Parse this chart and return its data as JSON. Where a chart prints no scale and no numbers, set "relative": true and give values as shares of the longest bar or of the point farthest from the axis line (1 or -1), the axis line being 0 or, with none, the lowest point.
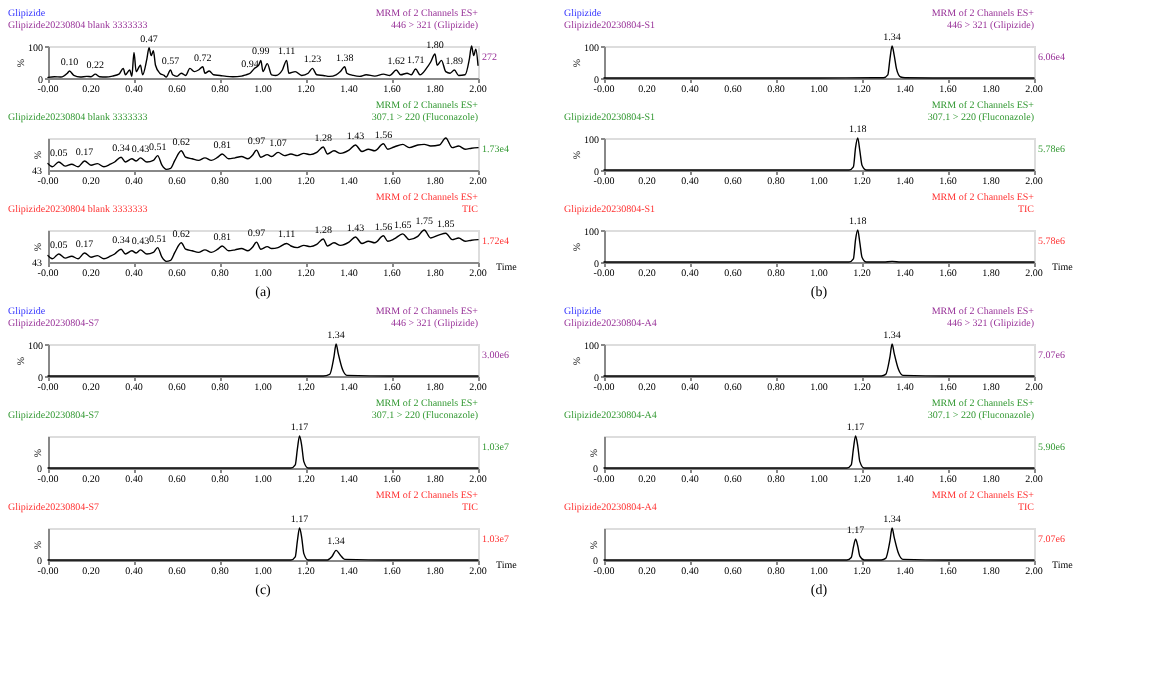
{
  "chart_data": [
    {
      "type": "line",
      "title": "Glipizide20230804 blank 3333333",
      "subtitle": "MRM of 2 Channels ES+\n446 > 321 (Glipizide)\n272",
      "ylabel": "%",
      "color": "#000000",
      "annotations": [
        "Glipizide",
        {
          "text": "0.10",
          "x": 0.1,
          "y": 22
        },
        {
          "text": "0.22",
          "x": 0.22,
          "y": 12
        },
        {
          "text": "0.47",
          "x": 0.47,
          "y": 95
        },
        {
          "text": "0.57",
          "x": 0.57,
          "y": 25
        },
        {
          "text": "0.72",
          "x": 0.72,
          "y": 35
        },
        {
          "text": "0.94",
          "x": 0.94,
          "y": 15
        },
        {
          "text": "0.99",
          "x": 0.99,
          "y": 55
        },
        {
          "text": "1.11",
          "x": 1.11,
          "y": 55
        },
        {
          "text": "1.23",
          "x": 1.23,
          "y": 30
        },
        {
          "text": "1.38",
          "x": 1.38,
          "y": 35
        },
        {
          "text": "1.62",
          "x": 1.62,
          "y": 25
        },
        {
          "text": "1.71",
          "x": 1.71,
          "y": 28
        },
        {
          "text": "1.80",
          "x": 1.8,
          "y": 75
        },
        {
          "text": "1.89",
          "x": 1.89,
          "y": 25
        }
      ],
      "x": [
        0.0,
        0.03,
        0.06,
        0.09,
        0.1,
        0.12,
        0.15,
        0.18,
        0.2,
        0.22,
        0.24,
        0.27,
        0.3,
        0.33,
        0.35,
        0.36,
        0.38,
        0.39,
        0.4,
        0.41,
        0.43,
        0.44,
        0.46,
        0.47,
        0.48,
        0.49,
        0.5,
        0.52,
        0.54,
        0.55,
        0.57,
        0.58,
        0.6,
        0.62,
        0.64,
        0.66,
        0.68,
        0.7,
        0.72,
        0.73,
        0.75,
        0.77,
        0.8,
        0.83,
        0.86,
        0.9,
        0.92,
        0.94,
        0.96,
        0.98,
        0.99,
        1.0,
        1.02,
        1.04,
        1.06,
        1.09,
        1.11,
        1.12,
        1.15,
        1.18,
        1.21,
        1.23,
        1.25,
        1.28,
        1.31,
        1.34,
        1.36,
        1.38,
        1.39,
        1.42,
        1.45,
        1.48,
        1.52,
        1.56,
        1.59,
        1.62,
        1.64,
        1.67,
        1.69,
        1.71,
        1.73,
        1.76,
        1.78,
        1.8,
        1.81,
        1.83,
        1.85,
        1.87,
        1.89,
        1.91,
        1.94,
        1.96,
        1.97,
        1.98,
        1.99,
        2.0
      ],
      "values": [
        2,
        4,
        3,
        15,
        22,
        8,
        3,
        5,
        4,
        12,
        4,
        3,
        6,
        12,
        30,
        10,
        25,
        5,
        80,
        20,
        40,
        10,
        60,
        95,
        70,
        85,
        40,
        15,
        8,
        3,
        25,
        10,
        5,
        15,
        8,
        30,
        20,
        25,
        35,
        15,
        22,
        10,
        8,
        5,
        4,
        6,
        10,
        15,
        30,
        40,
        55,
        20,
        45,
        10,
        8,
        25,
        55,
        15,
        20,
        8,
        15,
        30,
        10,
        8,
        5,
        10,
        20,
        35,
        15,
        8,
        5,
        10,
        6,
        12,
        8,
        25,
        10,
        15,
        10,
        28,
        10,
        30,
        50,
        75,
        40,
        55,
        20,
        15,
        25,
        8,
        10,
        60,
        100,
        70,
        90,
        40
      ],
      "xlim": [
        0,
        2
      ],
      "xticks": [
        {
          "value": 0,
          "label": "-0.00"
        },
        {
          "value": 0.2,
          "label": "0.20"
        },
        {
          "value": 0.4,
          "label": "0.40"
        },
        {
          "value": 0.6,
          "label": "0.60"
        },
        {
          "value": 0.8,
          "label": "0.80"
        },
        {
          "value": 1,
          "label": "1.00"
        },
        {
          "value": 1.2,
          "label": "1.20"
        },
        {
          "value": 1.4,
          "label": "1.40"
        },
        {
          "value": 1.6,
          "label": "1.60"
        },
        {
          "value": 1.8,
          "label": "1.80"
        },
        {
          "value": 2,
          "label": "2.00"
        }
      ],
      "ylim": [
        0,
        100
      ],
      "yticks": [
        0,
        100
      ]
    },
    {
      "type": "line",
      "relative": true,
      "title": "Glipizide20230804 blank 3333333",
      "subtitle": "MRM of 2 Channels ES+\n307.1 > 220 (Fluconazole)\n1.73e4",
      "ylabel": "%",
      "color": "#000000",
      "annotations": [
        "43",
        {
          "text": "0.05",
          "x": 0.05,
          "y": 0.25
        },
        {
          "text": "0.17",
          "x": 0.17,
          "y": 0.28
        },
        {
          "text": "0.34",
          "x": 0.34,
          "y": 0.4
        },
        {
          "text": "0.43",
          "x": 0.43,
          "y": 0.38
        },
        {
          "text": "0.51",
          "x": 0.51,
          "y": 0.45
        },
        {
          "text": "0.62",
          "x": 0.62,
          "y": 0.6
        },
        {
          "text": "0.81",
          "x": 0.81,
          "y": 0.5
        },
        {
          "text": "0.97",
          "x": 0.97,
          "y": 0.62
        },
        {
          "text": "1.07",
          "x": 1.07,
          "y": 0.55
        },
        {
          "text": "1.28",
          "x": 1.28,
          "y": 0.72
        },
        {
          "text": "1.43",
          "x": 1.43,
          "y": 0.78
        },
        {
          "text": "1.56",
          "x": 1.56,
          "y": 0.82
        }
      ],
      "x": [
        0.0,
        0.02,
        0.05,
        0.08,
        0.11,
        0.14,
        0.17,
        0.2,
        0.23,
        0.26,
        0.29,
        0.31,
        0.34,
        0.36,
        0.39,
        0.41,
        0.43,
        0.46,
        0.49,
        0.51,
        0.53,
        0.55,
        0.57,
        0.59,
        0.62,
        0.64,
        0.67,
        0.7,
        0.73,
        0.76,
        0.79,
        0.81,
        0.84,
        0.87,
        0.9,
        0.93,
        0.95,
        0.97,
        0.99,
        1.02,
        1.04,
        1.07,
        1.1,
        1.13,
        1.16,
        1.19,
        1.22,
        1.25,
        1.28,
        1.3,
        1.33,
        1.36,
        1.4,
        1.43,
        1.46,
        1.49,
        1.52,
        1.56,
        1.58,
        1.61,
        1.65,
        1.68,
        1.72,
        1.75,
        1.78,
        1.82,
        1.85,
        1.88,
        1.91,
        1.94,
        1.97,
        2.0
      ],
      "values": [
        0.2,
        0.1,
        0.25,
        0.12,
        0.18,
        0.1,
        0.28,
        0.15,
        0.2,
        0.1,
        0.18,
        0.25,
        0.4,
        0.25,
        0.35,
        0.28,
        0.38,
        0.25,
        0.3,
        0.45,
        0.15,
        0.02,
        0.05,
        0.3,
        0.6,
        0.4,
        0.35,
        0.3,
        0.38,
        0.3,
        0.4,
        0.5,
        0.35,
        0.38,
        0.42,
        0.35,
        0.45,
        0.62,
        0.4,
        0.48,
        0.42,
        0.55,
        0.45,
        0.5,
        0.45,
        0.52,
        0.48,
        0.55,
        0.72,
        0.5,
        0.6,
        0.52,
        0.62,
        0.78,
        0.58,
        0.65,
        0.6,
        0.82,
        0.65,
        0.72,
        0.8,
        0.7,
        0.78,
        0.8,
        0.75,
        0.78,
        1.0,
        0.7,
        0.75,
        0.65,
        0.68,
        0.7
      ],
      "xlim": [
        0,
        2
      ],
      "xticks": [
        {
          "value": 0,
          "label": "-0.00"
        },
        {
          "value": 0.2,
          "label": "0.20"
        },
        {
          "value": 0.4,
          "label": "0.40"
        },
        {
          "value": 0.6,
          "label": "0.60"
        },
        {
          "value": 0.8,
          "label": "0.80"
        },
        {
          "value": 1,
          "label": "1.00"
        },
        {
          "value": 1.2,
          "label": "1.20"
        },
        {
          "value": 1.4,
          "label": "1.40"
        },
        {
          "value": 1.6,
          "label": "1.60"
        },
        {
          "value": 1.8,
          "label": "1.80"
        },
        {
          "value": 2,
          "label": "2.00"
        }
      ]
    },
    {
      "type": "line",
      "relative": true,
      "title": "Glipizide20230804 blank 3333333",
      "subtitle": "MRM of 2 Channels ES+\nTIC\n1.72e4",
      "xlabel": "Time",
      "ylabel": "%",
      "color": "#000000",
      "annotations": [
        "43",
        "(a)",
        {
          "text": "0.05",
          "x": 0.05,
          "y": 0.25
        },
        {
          "text": "0.17",
          "x": 0.17,
          "y": 0.28
        },
        {
          "text": "0.34",
          "x": 0.34,
          "y": 0.4
        },
        {
          "text": "0.43",
          "x": 0.43,
          "y": 0.38
        },
        {
          "text": "0.51",
          "x": 0.51,
          "y": 0.45
        },
        {
          "text": "0.62",
          "x": 0.62,
          "y": 0.6
        },
        {
          "text": "0.81",
          "x": 0.81,
          "y": 0.5
        },
        {
          "text": "0.97",
          "x": 0.97,
          "y": 0.62
        },
        {
          "text": "1.11",
          "x": 1.11,
          "y": 0.58
        },
        {
          "text": "1.28",
          "x": 1.28,
          "y": 0.72
        },
        {
          "text": "1.43",
          "x": 1.43,
          "y": 0.78
        },
        {
          "text": "1.56",
          "x": 1.56,
          "y": 0.82
        },
        {
          "text": "1.65",
          "x": 1.65,
          "y": 0.88
        },
        {
          "text": "1.75",
          "x": 1.75,
          "y": 1.0
        },
        {
          "text": "1.85",
          "x": 1.85,
          "y": 0.9
        }
      ],
      "x": [
        0.0,
        0.02,
        0.05,
        0.08,
        0.11,
        0.14,
        0.17,
        0.2,
        0.23,
        0.26,
        0.29,
        0.31,
        0.34,
        0.36,
        0.39,
        0.41,
        0.43,
        0.46,
        0.49,
        0.51,
        0.53,
        0.55,
        0.57,
        0.59,
        0.62,
        0.64,
        0.67,
        0.7,
        0.73,
        0.76,
        0.79,
        0.81,
        0.84,
        0.87,
        0.9,
        0.93,
        0.95,
        0.97,
        0.99,
        1.02,
        1.04,
        1.07,
        1.11,
        1.13,
        1.16,
        1.19,
        1.22,
        1.25,
        1.28,
        1.3,
        1.33,
        1.36,
        1.4,
        1.43,
        1.46,
        1.49,
        1.52,
        1.56,
        1.58,
        1.61,
        1.65,
        1.68,
        1.72,
        1.75,
        1.78,
        1.82,
        1.85,
        1.88,
        1.91,
        1.94,
        1.97,
        2.0
      ],
      "values": [
        0.2,
        0.1,
        0.25,
        0.12,
        0.18,
        0.1,
        0.28,
        0.15,
        0.2,
        0.1,
        0.18,
        0.25,
        0.4,
        0.25,
        0.35,
        0.28,
        0.38,
        0.25,
        0.3,
        0.45,
        0.15,
        0.02,
        0.05,
        0.3,
        0.6,
        0.4,
        0.35,
        0.3,
        0.38,
        0.3,
        0.4,
        0.5,
        0.35,
        0.38,
        0.42,
        0.35,
        0.45,
        0.62,
        0.4,
        0.48,
        0.42,
        0.45,
        0.58,
        0.5,
        0.45,
        0.52,
        0.48,
        0.55,
        0.72,
        0.5,
        0.6,
        0.52,
        0.62,
        0.78,
        0.58,
        0.65,
        0.6,
        0.82,
        0.65,
        0.72,
        0.88,
        0.7,
        0.8,
        1.0,
        0.75,
        0.85,
        0.9,
        0.7,
        0.75,
        0.65,
        0.68,
        0.7
      ],
      "xlim": [
        0,
        2
      ],
      "xticks": [
        {
          "value": 0,
          "label": "-0.00"
        },
        {
          "value": 0.2,
          "label": "0.20"
        },
        {
          "value": 0.4,
          "label": "0.40"
        },
        {
          "value": 0.6,
          "label": "0.60"
        },
        {
          "value": 0.8,
          "label": "0.80"
        },
        {
          "value": 1,
          "label": "1.00"
        },
        {
          "value": 1.2,
          "label": "1.20"
        },
        {
          "value": 1.4,
          "label": "1.40"
        },
        {
          "value": 1.6,
          "label": "1.60"
        },
        {
          "value": 1.8,
          "label": "1.80"
        },
        {
          "value": 2,
          "label": "2.00"
        }
      ]
    },
    {
      "type": "line",
      "title": "Glipizide20230804-S1",
      "subtitle": "MRM of 2 Channels ES+\n446 > 321 (Glipizide)\n6.06e4",
      "ylabel": "%",
      "color": "#000000",
      "annotations": [
        "Glipizide",
        {
          "text": "1.34",
          "x": 1.34,
          "y": 100
        }
      ],
      "x": [
        0,
        0.5,
        1.0,
        1.25,
        1.3,
        1.32,
        1.33,
        1.34,
        1.35,
        1.36,
        1.37,
        1.38,
        1.4,
        1.6,
        2.0
      ],
      "values": [
        0,
        0,
        0,
        1,
        1,
        10,
        60,
        100,
        70,
        30,
        10,
        3,
        1,
        0,
        0
      ],
      "xlim": [
        0,
        2
      ],
      "xticks": [
        {
          "value": 0,
          "label": "-0.00"
        },
        {
          "value": 0.2,
          "label": "0.20"
        },
        {
          "value": 0.4,
          "label": "0.40"
        },
        {
          "value": 0.6,
          "label": "0.60"
        },
        {
          "value": 0.8,
          "label": "0.80"
        },
        {
          "value": 1,
          "label": "1.00"
        },
        {
          "value": 1.2,
          "label": "1.20"
        },
        {
          "value": 1.4,
          "label": "1.40"
        },
        {
          "value": 1.6,
          "label": "1.60"
        },
        {
          "value": 1.8,
          "label": "1.80"
        },
        {
          "value": 2,
          "label": "2.00"
        }
      ],
      "ylim": [
        0,
        100
      ],
      "yticks": [
        0,
        100
      ]
    },
    {
      "type": "line",
      "title": "Glipizide20230804-S1",
      "subtitle": "MRM of 2 Channels ES+\n307.1 > 220 (Fluconazole)\n5.78e6",
      "ylabel": "%",
      "color": "#000000",
      "annotations": [
        {
          "text": "1.18",
          "x": 1.18,
          "y": 100
        }
      ],
      "x": [
        0,
        0.5,
        1.0,
        1.14,
        1.16,
        1.17,
        1.18,
        1.19,
        1.2,
        1.22,
        1.6,
        2.0
      ],
      "values": [
        0,
        0,
        0,
        0,
        10,
        70,
        100,
        60,
        15,
        0,
        0,
        0
      ],
      "xlim": [
        0,
        2
      ],
      "xticks": [
        {
          "value": 0,
          "label": "-0.00"
        },
        {
          "value": 0.2,
          "label": "0.20"
        },
        {
          "value": 0.4,
          "label": "0.40"
        },
        {
          "value": 0.6,
          "label": "0.60"
        },
        {
          "value": 0.8,
          "label": "0.80"
        },
        {
          "value": 1,
          "label": "1.00"
        },
        {
          "value": 1.2,
          "label": "1.20"
        },
        {
          "value": 1.4,
          "label": "1.40"
        },
        {
          "value": 1.6,
          "label": "1.60"
        },
        {
          "value": 1.8,
          "label": "1.80"
        },
        {
          "value": 2,
          "label": "2.00"
        }
      ],
      "ylim": [
        0,
        100
      ],
      "yticks": [
        0,
        100
      ]
    },
    {
      "type": "line",
      "title": "Glipizide20230804-S1",
      "subtitle": "MRM of 2 Channels ES+\nTIC\n5.78e6",
      "xlabel": "Time",
      "ylabel": "%",
      "color": "#000000",
      "annotations": [
        "(b)",
        {
          "text": "1.18",
          "x": 1.18,
          "y": 100
        }
      ],
      "x": [
        0,
        0.5,
        1.0,
        1.14,
        1.16,
        1.17,
        1.18,
        1.19,
        1.2,
        1.22,
        1.3,
        1.34,
        1.38,
        1.6,
        2.0
      ],
      "values": [
        0,
        0,
        0,
        0,
        10,
        70,
        100,
        60,
        15,
        0,
        0,
        2,
        0,
        0,
        0
      ],
      "xlim": [
        0,
        2
      ],
      "xticks": [
        {
          "value": 0,
          "label": "-0.00"
        },
        {
          "value": 0.2,
          "label": "0.20"
        },
        {
          "value": 0.4,
          "label": "0.40"
        },
        {
          "value": 0.6,
          "label": "0.60"
        },
        {
          "value": 0.8,
          "label": "0.80"
        },
        {
          "value": 1,
          "label": "1.00"
        },
        {
          "value": 1.2,
          "label": "1.20"
        },
        {
          "value": 1.4,
          "label": "1.40"
        },
        {
          "value": 1.6,
          "label": "1.60"
        },
        {
          "value": 1.8,
          "label": "1.80"
        },
        {
          "value": 2,
          "label": "2.00"
        }
      ],
      "ylim": [
        0,
        100
      ],
      "yticks": [
        0,
        100
      ]
    },
    {
      "type": "line",
      "title": "Glipizide20230804-S7",
      "subtitle": "MRM of 2 Channels ES+\n446 > 321 (Glipizide)\n3.00e6",
      "ylabel": "%",
      "color": "#000000",
      "annotations": [
        "Glipizide",
        {
          "text": "1.34",
          "x": 1.34,
          "y": 100
        }
      ],
      "x": [
        0,
        0.5,
        1.0,
        1.28,
        1.31,
        1.33,
        1.34,
        1.35,
        1.37,
        1.39,
        1.6,
        2.0
      ],
      "values": [
        0,
        0,
        0,
        0,
        5,
        60,
        100,
        70,
        20,
        2,
        0,
        0
      ],
      "xlim": [
        0,
        2
      ],
      "xticks": [
        {
          "value": 0,
          "label": "-0.00"
        },
        {
          "value": 0.2,
          "label": "0.20"
        },
        {
          "value": 0.4,
          "label": "0.40"
        },
        {
          "value": 0.6,
          "label": "0.60"
        },
        {
          "value": 0.8,
          "label": "0.80"
        },
        {
          "value": 1,
          "label": "1.00"
        },
        {
          "value": 1.2,
          "label": "1.20"
        },
        {
          "value": 1.4,
          "label": "1.40"
        },
        {
          "value": 1.6,
          "label": "1.60"
        },
        {
          "value": 1.8,
          "label": "1.80"
        },
        {
          "value": 2,
          "label": "2.00"
        }
      ],
      "ylim": [
        0,
        100
      ],
      "yticks": [
        0,
        100
      ]
    },
    {
      "type": "line",
      "relative": true,
      "title": "Glipizide20230804-S7",
      "subtitle": "MRM of 2 Channels ES+\n307.1 > 220 (Fluconazole)\n1.03e7",
      "ylabel": "%",
      "color": "#000000",
      "annotations": [
        "0",
        {
          "text": "1.17",
          "x": 1.17,
          "y": 1
        }
      ],
      "x": [
        0,
        0.5,
        1.0,
        1.13,
        1.15,
        1.16,
        1.17,
        1.18,
        1.19,
        1.21,
        1.6,
        2.0
      ],
      "values": [
        0,
        0,
        0,
        0,
        0.1,
        0.6,
        1,
        0.7,
        0.2,
        0,
        0,
        0
      ],
      "xlim": [
        0,
        2
      ],
      "xticks": [
        {
          "value": 0,
          "label": "-0.00"
        },
        {
          "value": 0.2,
          "label": "0.20"
        },
        {
          "value": 0.4,
          "label": "0.40"
        },
        {
          "value": 0.6,
          "label": "0.60"
        },
        {
          "value": 0.8,
          "label": "0.80"
        },
        {
          "value": 1,
          "label": "1.00"
        },
        {
          "value": 1.2,
          "label": "1.20"
        },
        {
          "value": 1.4,
          "label": "1.40"
        },
        {
          "value": 1.6,
          "label": "1.60"
        },
        {
          "value": 1.8,
          "label": "1.80"
        },
        {
          "value": 2,
          "label": "2.00"
        }
      ]
    },
    {
      "type": "line",
      "relative": true,
      "title": "Glipizide20230804-S7",
      "subtitle": "MRM of 2 Channels ES+\nTIC\n1.03e7",
      "xlabel": "Time",
      "ylabel": "%",
      "color": "#000000",
      "annotations": [
        "0",
        "(c)",
        {
          "text": "1.17",
          "x": 1.17,
          "y": 1
        },
        {
          "text": "1.34",
          "x": 1.34,
          "y": 0.3
        }
      ],
      "x": [
        0,
        0.5,
        1.0,
        1.13,
        1.15,
        1.16,
        1.17,
        1.18,
        1.19,
        1.21,
        1.3,
        1.32,
        1.34,
        1.36,
        1.38,
        1.6,
        2.0
      ],
      "values": [
        0,
        0,
        0,
        0,
        0.1,
        0.6,
        1,
        0.7,
        0.2,
        0,
        0,
        0.1,
        0.3,
        0.15,
        0.02,
        0,
        0
      ],
      "xlim": [
        0,
        2
      ],
      "xticks": [
        {
          "value": 0,
          "label": "-0.00"
        },
        {
          "value": 0.2,
          "label": "0.20"
        },
        {
          "value": 0.4,
          "label": "0.40"
        },
        {
          "value": 0.6,
          "label": "0.60"
        },
        {
          "value": 0.8,
          "label": "0.80"
        },
        {
          "value": 1,
          "label": "1.00"
        },
        {
          "value": 1.2,
          "label": "1.20"
        },
        {
          "value": 1.4,
          "label": "1.40"
        },
        {
          "value": 1.6,
          "label": "1.60"
        },
        {
          "value": 1.8,
          "label": "1.80"
        },
        {
          "value": 2,
          "label": "2.00"
        }
      ]
    },
    {
      "type": "line",
      "title": "Glipizide20230804-A4",
      "subtitle": "MRM of 2 Channels ES+\n446 > 321 (Glipizide)\n7.07e6",
      "ylabel": "%",
      "color": "#000000",
      "annotations": [
        "Glipizide",
        {
          "text": "1.34",
          "x": 1.34,
          "y": 100
        }
      ],
      "x": [
        0,
        0.5,
        1.0,
        1.29,
        1.31,
        1.33,
        1.34,
        1.35,
        1.37,
        1.39,
        1.6,
        2.0
      ],
      "values": [
        0,
        0,
        0,
        0,
        5,
        60,
        100,
        70,
        20,
        2,
        0,
        0
      ],
      "xlim": [
        0,
        2
      ],
      "xticks": [
        {
          "value": 0,
          "label": "-0.00"
        },
        {
          "value": 0.2,
          "label": "0.20"
        },
        {
          "value": 0.4,
          "label": "0.40"
        },
        {
          "value": 0.6,
          "label": "0.60"
        },
        {
          "value": 0.8,
          "label": "0.80"
        },
        {
          "value": 1,
          "label": "1.00"
        },
        {
          "value": 1.2,
          "label": "1.20"
        },
        {
          "value": 1.4,
          "label": "1.40"
        },
        {
          "value": 1.6,
          "label": "1.60"
        },
        {
          "value": 1.8,
          "label": "1.80"
        },
        {
          "value": 2,
          "label": "2.00"
        }
      ],
      "ylim": [
        0,
        100
      ],
      "yticks": [
        0,
        100
      ]
    },
    {
      "type": "line",
      "relative": true,
      "title": "Glipizide20230804-A4",
      "subtitle": "MRM of 2 Channels ES+\n307.1 > 220 (Fluconazole)\n5.90e6",
      "ylabel": "%",
      "color": "#000000",
      "annotations": [
        "0",
        {
          "text": "1.17",
          "x": 1.17,
          "y": 1
        }
      ],
      "x": [
        0,
        0.5,
        1.0,
        1.13,
        1.15,
        1.16,
        1.17,
        1.18,
        1.19,
        1.21,
        1.6,
        2.0
      ],
      "values": [
        0,
        0,
        0,
        0,
        0.1,
        0.6,
        1,
        0.7,
        0.2,
        0,
        0,
        0
      ],
      "xlim": [
        0,
        2
      ],
      "xticks": [
        {
          "value": 0,
          "label": "-0.00"
        },
        {
          "value": 0.2,
          "label": "0.20"
        },
        {
          "value": 0.4,
          "label": "0.40"
        },
        {
          "value": 0.6,
          "label": "0.60"
        },
        {
          "value": 0.8,
          "label": "0.80"
        },
        {
          "value": 1,
          "label": "1.00"
        },
        {
          "value": 1.2,
          "label": "1.20"
        },
        {
          "value": 1.4,
          "label": "1.40"
        },
        {
          "value": 1.6,
          "label": "1.60"
        },
        {
          "value": 1.8,
          "label": "1.80"
        },
        {
          "value": 2,
          "label": "2.00"
        }
      ]
    },
    {
      "type": "line",
      "relative": true,
      "title": "Glipizide20230804-A4",
      "subtitle": "MRM of 2 Channels ES+\nTIC\n7.07e6",
      "xlabel": "Time",
      "ylabel": "%",
      "color": "#000000",
      "annotations": [
        "0",
        "(d)",
        {
          "text": "1.17",
          "x": 1.17,
          "y": 0.65
        },
        {
          "text": "1.34",
          "x": 1.34,
          "y": 1
        }
      ],
      "x": [
        0,
        0.5,
        1.0,
        1.13,
        1.15,
        1.16,
        1.17,
        1.18,
        1.19,
        1.21,
        1.29,
        1.31,
        1.33,
        1.34,
        1.35,
        1.37,
        1.39,
        1.6,
        2.0
      ],
      "values": [
        0,
        0,
        0,
        0,
        0.08,
        0.4,
        0.65,
        0.45,
        0.12,
        0,
        0,
        0.05,
        0.6,
        1,
        0.7,
        0.2,
        0.02,
        0,
        0
      ],
      "xlim": [
        0,
        2
      ],
      "xticks": [
        {
          "value": 0,
          "label": "-0.00"
        },
        {
          "value": 0.2,
          "label": "0.20"
        },
        {
          "value": 0.4,
          "label": "0.40"
        },
        {
          "value": 0.6,
          "label": "0.60"
        },
        {
          "value": 0.8,
          "label": "0.80"
        },
        {
          "value": 1,
          "label": "1.00"
        },
        {
          "value": 1.2,
          "label": "1.20"
        },
        {
          "value": 1.4,
          "label": "1.40"
        },
        {
          "value": 1.6,
          "label": "1.60"
        },
        {
          "value": 1.8,
          "label": "1.80"
        },
        {
          "value": 2,
          "label": "2.00"
        }
      ]
    }
  ]
}
